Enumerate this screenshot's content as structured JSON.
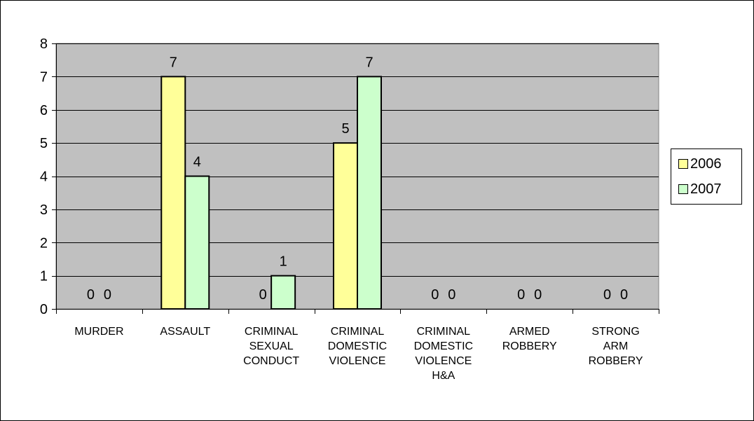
{
  "chart_data": {
    "type": "bar",
    "categories": [
      [
        "MURDER"
      ],
      [
        "ASSAULT"
      ],
      [
        "CRIMINAL",
        "SEXUAL",
        "CONDUCT"
      ],
      [
        "CRIMINAL",
        "DOMESTIC",
        "VIOLENCE"
      ],
      [
        "CRIMINAL",
        "DOMESTIC",
        "VIOLENCE",
        "H&A"
      ],
      [
        "ARMED",
        "ROBBERY"
      ],
      [
        "STRONG",
        "ARM",
        "ROBBERY"
      ]
    ],
    "series": [
      {
        "name": "2006",
        "values": [
          0,
          7,
          0,
          5,
          0,
          0,
          0
        ],
        "color": "#ffff99"
      },
      {
        "name": "2007",
        "values": [
          0,
          4,
          1,
          7,
          0,
          0,
          0
        ],
        "color": "#ccffcc"
      }
    ],
    "ylim": [
      0,
      8
    ],
    "yticks": [
      0,
      1,
      2,
      3,
      4,
      5,
      6,
      7,
      8
    ],
    "grid": true,
    "legend_position": "right",
    "plot_background": "#c0c0c0"
  }
}
